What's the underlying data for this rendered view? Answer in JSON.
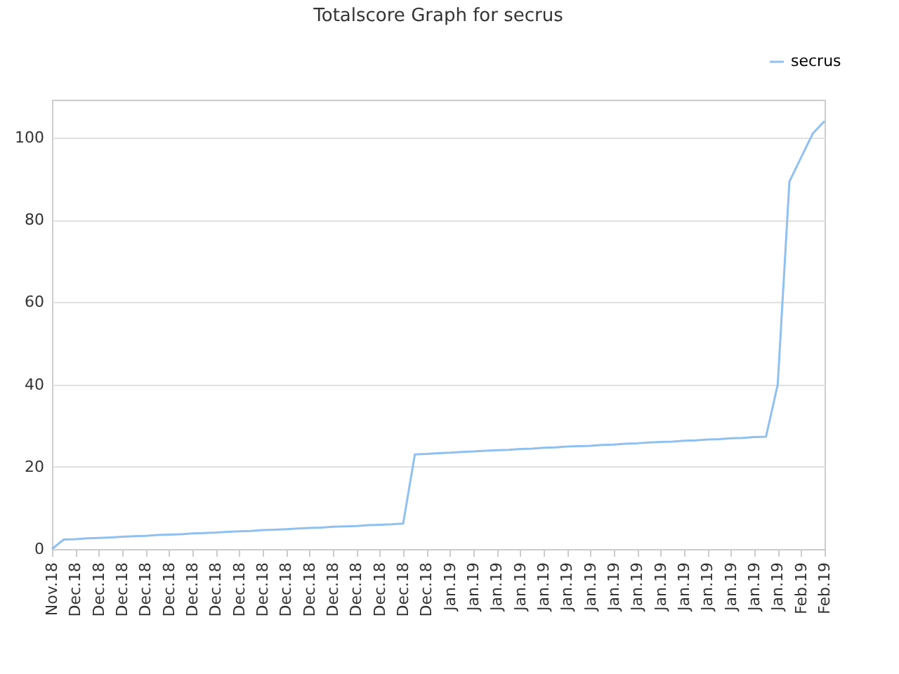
{
  "chart_data": {
    "type": "line",
    "title": "Totalscore Graph for secrus",
    "categories": [
      "Nov.18",
      null,
      "Dec.18",
      null,
      "Dec.18",
      null,
      "Dec.18",
      null,
      "Dec.18",
      null,
      "Dec.18",
      null,
      "Dec.18",
      null,
      "Dec.18",
      null,
      "Dec.18",
      null,
      "Dec.18",
      null,
      "Dec.18",
      null,
      "Dec.18",
      null,
      "Dec.18",
      null,
      "Dec.18",
      null,
      "Dec.18",
      null,
      "Dec.18",
      null,
      "Dec.18",
      null,
      "Jan.19",
      null,
      "Jan.19",
      null,
      "Jan.19",
      null,
      "Jan.19",
      null,
      "Jan.19",
      null,
      "Jan.19",
      null,
      "Jan.19",
      null,
      "Jan.19",
      null,
      "Jan.19",
      null,
      "Jan.19",
      null,
      "Jan.19",
      null,
      "Jan.19",
      null,
      "Jan.19",
      null,
      "Jan.19",
      null,
      "Jan.19",
      null,
      "Feb.19",
      null,
      "Feb.19"
    ],
    "series": [
      {
        "name": "secrus",
        "color": "#90c0f0",
        "values": [
          0,
          2.3,
          2.4,
          2.6,
          2.7,
          2.8,
          3.0,
          3.1,
          3.2,
          3.4,
          3.5,
          3.6,
          3.8,
          3.9,
          4.0,
          4.2,
          4.3,
          4.4,
          4.6,
          4.7,
          4.8,
          5.0,
          5.1,
          5.2,
          5.4,
          5.5,
          5.6,
          5.8,
          5.9,
          6.0,
          6.2,
          23.0,
          23.1,
          23.3,
          23.4,
          23.6,
          23.7,
          23.9,
          24.0,
          24.1,
          24.3,
          24.4,
          24.6,
          24.7,
          24.9,
          25.0,
          25.1,
          25.3,
          25.4,
          25.6,
          25.7,
          25.9,
          26.0,
          26.1,
          26.3,
          26.4,
          26.6,
          26.7,
          26.9,
          27.0,
          27.2,
          27.3,
          40,
          89.3,
          95.2,
          101,
          104
        ]
      }
    ],
    "ylim": [
      0,
      109.2
    ],
    "yticks": [
      0,
      20,
      40,
      60,
      80,
      100
    ],
    "grid": "y",
    "legend": "top right"
  }
}
